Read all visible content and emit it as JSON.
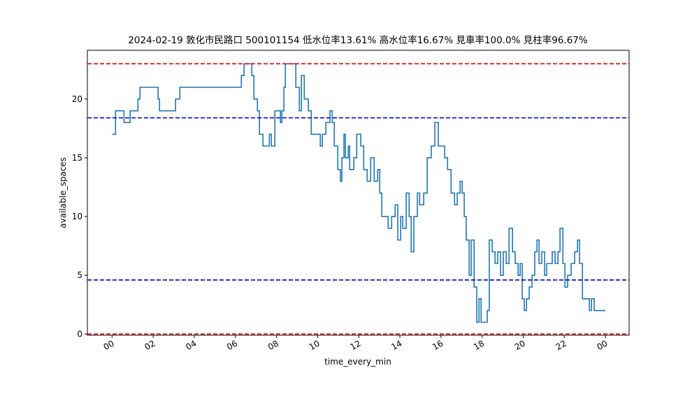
{
  "chart_data": {
    "type": "line",
    "title": "2024-02-19 敦化市民路口 500101154 低水位率13.61% 高水位率16.67% 見車率100.0% 見柱率96.67%",
    "xlabel": "time_every_min",
    "ylabel": "available_spaces",
    "xlim": [
      -1.2,
      25.15
    ],
    "ylim": [
      -0.1,
      24.15
    ],
    "xticks": [
      {
        "value": 0,
        "label": "00"
      },
      {
        "value": 2,
        "label": "02"
      },
      {
        "value": 4,
        "label": "04"
      },
      {
        "value": 6,
        "label": "06"
      },
      {
        "value": 8,
        "label": "08"
      },
      10,
      12,
      14,
      16,
      18,
      20,
      22,
      {
        "value": 24,
        "label": "00"
      }
    ],
    "yticks": [
      0,
      5,
      10,
      15,
      20
    ],
    "hlines": [
      {
        "value": 23,
        "color": "#e00000"
      },
      {
        "value": 18.4,
        "color": "#0000cc"
      },
      {
        "value": 4.6,
        "color": "#0000cc"
      },
      {
        "value": 0,
        "color": "#e00000"
      }
    ],
    "x": [
      0,
      0.17,
      0.17,
      0.58,
      0.58,
      0.88,
      0.88,
      1.26,
      1.26,
      1.36,
      1.36,
      2.24,
      2.24,
      2.31,
      2.31,
      3.09,
      3.09,
      3.3,
      3.3,
      6.29,
      6.29,
      6.42,
      6.42,
      6.8,
      6.8,
      6.9,
      6.9,
      7.07,
      7.07,
      7.17,
      7.17,
      7.34,
      7.34,
      7.65,
      7.65,
      7.75,
      7.75,
      7.92,
      7.92,
      8.19,
      8.19,
      8.26,
      8.26,
      8.36,
      8.36,
      8.43,
      8.43,
      8.94,
      8.94,
      9.11,
      9.11,
      9.21,
      9.21,
      9.35,
      9.35,
      9.55,
      9.55,
      9.69,
      9.69,
      10.13,
      10.13,
      10.23,
      10.23,
      10.4,
      10.4,
      10.6,
      10.6,
      10.71,
      10.71,
      10.81,
      10.81,
      10.98,
      10.98,
      11.11,
      11.11,
      11.18,
      11.18,
      11.28,
      11.28,
      11.35,
      11.35,
      11.49,
      11.49,
      11.56,
      11.56,
      11.76,
      11.76,
      11.9,
      11.9,
      12.1,
      12.1,
      12.24,
      12.24,
      12.41,
      12.41,
      12.58,
      12.58,
      12.75,
      12.75,
      12.92,
      12.92,
      13.02,
      13.02,
      13.12,
      13.12,
      13.43,
      13.43,
      13.6,
      13.6,
      13.77,
      13.77,
      13.9,
      13.9,
      14.04,
      14.04,
      14.14,
      14.14,
      14.31,
      14.31,
      14.45,
      14.45,
      14.55,
      14.55,
      14.68,
      14.68,
      14.85,
      14.85,
      14.96,
      14.96,
      15.16,
      15.16,
      15.33,
      15.33,
      15.53,
      15.53,
      15.7,
      15.7,
      15.87,
      15.87,
      16.18,
      16.18,
      16.32,
      16.32,
      16.49,
      16.49,
      16.66,
      16.66,
      16.79,
      16.79,
      16.93,
      16.93,
      17.03,
      17.03,
      17.13,
      17.13,
      17.23,
      17.23,
      17.37,
      17.37,
      17.47,
      17.47,
      17.61,
      17.61,
      17.74,
      17.74,
      17.85,
      17.85,
      17.95,
      17.95,
      18.25,
      18.25,
      18.35,
      18.35,
      18.49,
      18.49,
      18.63,
      18.63,
      18.76,
      18.76,
      18.9,
      18.9,
      19.03,
      19.03,
      19.17,
      19.17,
      19.31,
      19.31,
      19.48,
      19.48,
      19.61,
      19.61,
      19.75,
      19.75,
      19.85,
      19.85,
      19.95,
      19.95,
      20.05,
      20.05,
      20.16,
      20.16,
      20.29,
      20.29,
      20.43,
      20.43,
      20.56,
      20.56,
      20.67,
      20.67,
      20.77,
      20.77,
      20.9,
      20.9,
      21.04,
      21.04,
      21.14,
      21.14,
      21.41,
      21.41,
      21.55,
      21.55,
      21.69,
      21.69,
      21.79,
      21.79,
      21.93,
      21.93,
      22.03,
      22.03,
      22.16,
      22.16,
      22.33,
      22.33,
      22.5,
      22.5,
      22.64,
      22.64,
      22.74,
      22.74,
      22.88,
      22.88,
      23.22,
      23.22,
      23.32,
      23.32,
      23.45,
      23.45,
      24
    ],
    "series": [
      {
        "color": "#1f77b4",
        "values": [
          17,
          17,
          19,
          19,
          18,
          18,
          19,
          19,
          20,
          20,
          21,
          21,
          20,
          20,
          19,
          19,
          20,
          20,
          21,
          21,
          22,
          22,
          23,
          23,
          22,
          22,
          20,
          20,
          19,
          19,
          17,
          17,
          16,
          16,
          17,
          17,
          16,
          16,
          19,
          19,
          18,
          18,
          19,
          19,
          21,
          21,
          23,
          23,
          21,
          21,
          19,
          19,
          22,
          22,
          20,
          20,
          19,
          19,
          17,
          17,
          16,
          16,
          17,
          17,
          18,
          18,
          19,
          19,
          18,
          18,
          16,
          16,
          14,
          14,
          13,
          13,
          15,
          15,
          17,
          17,
          15,
          15,
          16,
          16,
          14,
          14,
          15,
          15,
          17,
          17,
          16,
          16,
          14,
          14,
          13,
          13,
          15,
          15,
          13,
          13,
          14,
          14,
          12,
          12,
          10,
          10,
          9,
          9,
          10,
          10,
          11,
          11,
          8,
          8,
          10,
          10,
          9,
          9,
          12,
          12,
          10,
          10,
          7,
          7,
          10,
          10,
          12,
          12,
          11,
          11,
          12,
          12,
          15,
          15,
          16,
          16,
          18,
          18,
          16,
          16,
          15,
          15,
          14,
          14,
          12,
          12,
          11,
          11,
          12,
          12,
          13,
          13,
          12,
          12,
          10,
          10,
          8,
          8,
          5,
          5,
          8,
          8,
          4,
          4,
          1,
          1,
          3,
          3,
          1,
          1,
          2,
          2,
          8,
          8,
          7,
          7,
          6,
          6,
          7,
          7,
          5,
          5,
          7,
          7,
          6,
          6,
          9,
          9,
          7,
          7,
          6,
          6,
          5,
          5,
          6,
          6,
          3,
          3,
          2,
          2,
          3,
          3,
          4,
          4,
          5,
          5,
          7,
          7,
          8,
          8,
          6,
          6,
          7,
          7,
          5,
          5,
          6,
          6,
          7,
          7,
          6,
          6,
          7,
          7,
          9,
          9,
          6,
          6,
          4,
          4,
          5,
          5,
          6,
          6,
          7,
          7,
          8,
          8,
          6,
          6,
          3,
          3,
          2,
          2,
          3,
          3,
          2,
          2
        ]
      }
    ]
  }
}
